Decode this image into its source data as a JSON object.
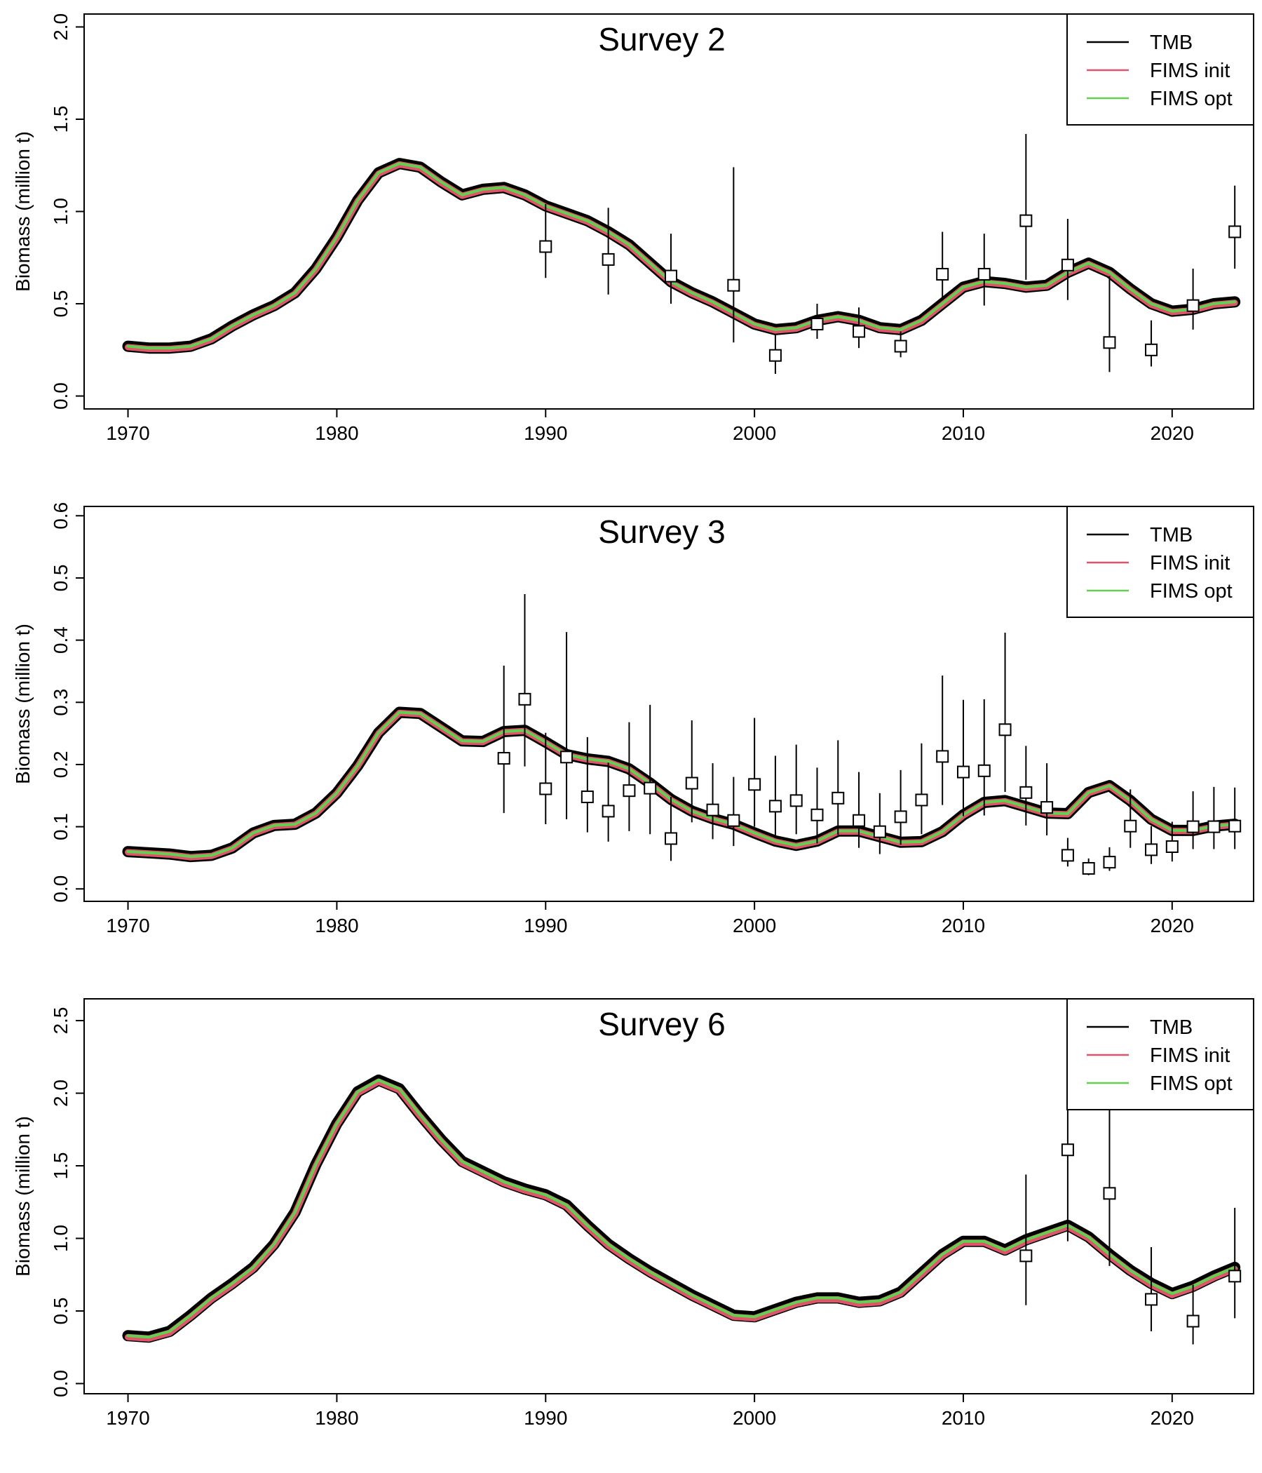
{
  "chart_data": [
    {
      "type": "line",
      "title": "Survey 2",
      "xlabel": "",
      "ylabel": "Biomass (million t)",
      "xlim": [
        1967.9,
        2023.9
      ],
      "ylim": [
        -0.07,
        2.07
      ],
      "yticks": [
        0.0,
        0.5,
        1.0,
        1.5,
        2.0
      ],
      "xticks": [
        1970,
        1980,
        1990,
        2000,
        2010,
        2020
      ],
      "ytick_labels": [
        "0.0",
        "0.5",
        "1.0",
        "1.5",
        "2.0"
      ],
      "xtick_labels": [
        "1970",
        "1980",
        "1990",
        "2000",
        "2010",
        "2020"
      ],
      "grid": false,
      "legend_position": "top-right",
      "x": [
        1970,
        1971,
        1972,
        1973,
        1974,
        1975,
        1976,
        1977,
        1978,
        1979,
        1980,
        1981,
        1982,
        1983,
        1984,
        1985,
        1986,
        1987,
        1988,
        1989,
        1990,
        1991,
        1992,
        1993,
        1994,
        1995,
        1996,
        1997,
        1998,
        1999,
        2000,
        2001,
        2002,
        2003,
        2004,
        2005,
        2006,
        2007,
        2008,
        2009,
        2010,
        2011,
        2012,
        2013,
        2014,
        2015,
        2016,
        2017,
        2018,
        2019,
        2020,
        2021,
        2022,
        2023
      ],
      "series": [
        {
          "name": "TMB",
          "color": "#000000",
          "values": [
            0.27,
            0.26,
            0.26,
            0.27,
            0.31,
            0.38,
            0.44,
            0.49,
            0.56,
            0.69,
            0.86,
            1.06,
            1.21,
            1.26,
            1.24,
            1.16,
            1.09,
            1.12,
            1.13,
            1.09,
            1.03,
            0.99,
            0.95,
            0.89,
            0.82,
            0.72,
            0.62,
            0.56,
            0.51,
            0.45,
            0.39,
            0.36,
            0.37,
            0.41,
            0.43,
            0.41,
            0.37,
            0.36,
            0.41,
            0.5,
            0.59,
            0.62,
            0.61,
            0.59,
            0.6,
            0.67,
            0.72,
            0.67,
            0.58,
            0.5,
            0.46,
            0.47,
            0.5,
            0.51
          ]
        },
        {
          "name": "FIMS init",
          "color": "#DF536B",
          "values": [
            0.265,
            0.255,
            0.255,
            0.265,
            0.305,
            0.375,
            0.435,
            0.485,
            0.555,
            0.685,
            0.855,
            1.055,
            1.205,
            1.255,
            1.235,
            1.155,
            1.085,
            1.115,
            1.125,
            1.085,
            1.025,
            0.985,
            0.945,
            0.885,
            0.815,
            0.715,
            0.615,
            0.555,
            0.505,
            0.445,
            0.385,
            0.355,
            0.365,
            0.405,
            0.425,
            0.405,
            0.365,
            0.355,
            0.405,
            0.495,
            0.585,
            0.615,
            0.605,
            0.585,
            0.595,
            0.665,
            0.715,
            0.665,
            0.575,
            0.495,
            0.455,
            0.465,
            0.495,
            0.505
          ]
        },
        {
          "name": "FIMS opt",
          "color": "#61D04F",
          "values": [
            0.27,
            0.26,
            0.26,
            0.27,
            0.31,
            0.38,
            0.44,
            0.49,
            0.56,
            0.69,
            0.86,
            1.06,
            1.21,
            1.26,
            1.24,
            1.16,
            1.09,
            1.12,
            1.13,
            1.09,
            1.03,
            0.99,
            0.95,
            0.89,
            0.82,
            0.72,
            0.62,
            0.56,
            0.51,
            0.45,
            0.39,
            0.36,
            0.37,
            0.41,
            0.43,
            0.41,
            0.37,
            0.36,
            0.41,
            0.5,
            0.59,
            0.62,
            0.61,
            0.59,
            0.6,
            0.67,
            0.72,
            0.67,
            0.58,
            0.5,
            0.46,
            0.47,
            0.5,
            0.51
          ]
        }
      ],
      "observations": {
        "x": [
          1990,
          1993,
          1996,
          1999,
          2001,
          2003,
          2005,
          2007,
          2009,
          2011,
          2013,
          2015,
          2017,
          2019,
          2021,
          2023
        ],
        "y": [
          0.81,
          0.74,
          0.65,
          0.6,
          0.22,
          0.39,
          0.35,
          0.27,
          0.66,
          0.66,
          0.95,
          0.71,
          0.29,
          0.25,
          0.49,
          0.89
        ],
        "lower": [
          0.64,
          0.55,
          0.5,
          0.29,
          0.12,
          0.31,
          0.26,
          0.21,
          0.52,
          0.49,
          0.63,
          0.52,
          0.13,
          0.16,
          0.36,
          0.69
        ],
        "upper": [
          1.04,
          1.02,
          0.88,
          1.24,
          0.33,
          0.5,
          0.48,
          0.35,
          0.89,
          0.88,
          1.42,
          0.96,
          0.65,
          0.41,
          0.69,
          1.14
        ]
      }
    },
    {
      "type": "line",
      "title": "Survey 3",
      "xlabel": "",
      "ylabel": "Biomass (million t)",
      "xlim": [
        1967.9,
        2023.9
      ],
      "ylim": [
        -0.02,
        0.615
      ],
      "yticks": [
        0.0,
        0.1,
        0.2,
        0.3,
        0.4,
        0.5,
        0.6
      ],
      "xticks": [
        1970,
        1980,
        1990,
        2000,
        2010,
        2020
      ],
      "ytick_labels": [
        "0.0",
        "0.1",
        "0.2",
        "0.3",
        "0.4",
        "0.5",
        "0.6"
      ],
      "xtick_labels": [
        "1970",
        "1980",
        "1990",
        "2000",
        "2010",
        "2020"
      ],
      "grid": false,
      "legend_position": "top-right",
      "x": [
        1970,
        1971,
        1972,
        1973,
        1974,
        1975,
        1976,
        1977,
        1978,
        1979,
        1980,
        1981,
        1982,
        1983,
        1984,
        1985,
        1986,
        1987,
        1988,
        1989,
        1990,
        1991,
        1992,
        1993,
        1994,
        1995,
        1996,
        1997,
        1998,
        1999,
        2000,
        2001,
        2002,
        2003,
        2004,
        2005,
        2006,
        2007,
        2008,
        2009,
        2010,
        2011,
        2012,
        2013,
        2014,
        2015,
        2016,
        2017,
        2018,
        2019,
        2020,
        2021,
        2022,
        2023
      ],
      "series": [
        {
          "name": "TMB",
          "color": "#000000",
          "values": [
            0.06,
            0.058,
            0.056,
            0.052,
            0.054,
            0.066,
            0.09,
            0.102,
            0.104,
            0.122,
            0.154,
            0.198,
            0.251,
            0.284,
            0.282,
            0.26,
            0.238,
            0.237,
            0.253,
            0.255,
            0.236,
            0.216,
            0.209,
            0.205,
            0.193,
            0.17,
            0.144,
            0.125,
            0.113,
            0.104,
            0.09,
            0.077,
            0.07,
            0.077,
            0.093,
            0.093,
            0.084,
            0.075,
            0.076,
            0.092,
            0.119,
            0.139,
            0.142,
            0.132,
            0.122,
            0.121,
            0.155,
            0.166,
            0.142,
            0.112,
            0.094,
            0.094,
            0.101,
            0.104
          ]
        },
        {
          "name": "FIMS init",
          "color": "#DF536B",
          "values": [
            0.059,
            0.057,
            0.055,
            0.051,
            0.053,
            0.065,
            0.089,
            0.101,
            0.103,
            0.121,
            0.153,
            0.197,
            0.25,
            0.283,
            0.281,
            0.259,
            0.237,
            0.236,
            0.252,
            0.254,
            0.235,
            0.215,
            0.208,
            0.204,
            0.192,
            0.169,
            0.143,
            0.124,
            0.112,
            0.103,
            0.089,
            0.076,
            0.069,
            0.076,
            0.092,
            0.092,
            0.083,
            0.074,
            0.075,
            0.091,
            0.118,
            0.138,
            0.141,
            0.131,
            0.121,
            0.12,
            0.154,
            0.165,
            0.141,
            0.111,
            0.093,
            0.093,
            0.1,
            0.103
          ]
        },
        {
          "name": "FIMS opt",
          "color": "#61D04F",
          "values": [
            0.06,
            0.058,
            0.056,
            0.052,
            0.054,
            0.066,
            0.09,
            0.102,
            0.104,
            0.122,
            0.154,
            0.198,
            0.251,
            0.284,
            0.282,
            0.26,
            0.238,
            0.237,
            0.253,
            0.255,
            0.236,
            0.216,
            0.209,
            0.205,
            0.193,
            0.17,
            0.144,
            0.125,
            0.113,
            0.104,
            0.09,
            0.077,
            0.07,
            0.077,
            0.093,
            0.093,
            0.084,
            0.075,
            0.076,
            0.092,
            0.119,
            0.139,
            0.142,
            0.132,
            0.122,
            0.121,
            0.155,
            0.166,
            0.142,
            0.112,
            0.094,
            0.094,
            0.101,
            0.104
          ]
        }
      ],
      "observations": {
        "x": [
          1988,
          1989,
          1990,
          1991,
          1992,
          1993,
          1994,
          1995,
          1996,
          1997,
          1998,
          1999,
          2000,
          2001,
          2002,
          2003,
          2004,
          2005,
          2006,
          2007,
          2008,
          2009,
          2010,
          2011,
          2012,
          2013,
          2014,
          2015,
          2016,
          2017,
          2018,
          2019,
          2020,
          2021,
          2022,
          2023
        ],
        "y": [
          0.21,
          0.305,
          0.161,
          0.212,
          0.148,
          0.125,
          0.158,
          0.162,
          0.081,
          0.17,
          0.127,
          0.11,
          0.168,
          0.133,
          0.142,
          0.119,
          0.146,
          0.11,
          0.092,
          0.116,
          0.143,
          0.213,
          0.188,
          0.19,
          0.256,
          0.155,
          0.131,
          0.054,
          0.033,
          0.043,
          0.101,
          0.063,
          0.068,
          0.1,
          0.1,
          0.101
        ],
        "lower": [
          0.122,
          0.197,
          0.104,
          0.112,
          0.091,
          0.076,
          0.093,
          0.088,
          0.045,
          0.107,
          0.08,
          0.069,
          0.1,
          0.082,
          0.088,
          0.073,
          0.087,
          0.066,
          0.056,
          0.071,
          0.088,
          0.135,
          0.117,
          0.118,
          0.156,
          0.102,
          0.086,
          0.036,
          0.022,
          0.029,
          0.066,
          0.04,
          0.044,
          0.064,
          0.064,
          0.064
        ],
        "upper": [
          0.359,
          0.474,
          0.251,
          0.413,
          0.244,
          0.203,
          0.268,
          0.296,
          0.148,
          0.271,
          0.202,
          0.18,
          0.275,
          0.214,
          0.232,
          0.195,
          0.239,
          0.188,
          0.154,
          0.191,
          0.234,
          0.343,
          0.304,
          0.305,
          0.412,
          0.23,
          0.202,
          0.082,
          0.049,
          0.067,
          0.16,
          0.101,
          0.108,
          0.157,
          0.164,
          0.163
        ]
      }
    },
    {
      "type": "line",
      "title": "Survey 6",
      "xlabel": "",
      "ylabel": "Biomass (million t)",
      "xlim": [
        1967.9,
        2023.9
      ],
      "ylim": [
        -0.07,
        2.65
      ],
      "yticks": [
        0.0,
        0.5,
        1.0,
        1.5,
        2.0,
        2.5
      ],
      "xticks": [
        1970,
        1980,
        1990,
        2000,
        2010,
        2020
      ],
      "ytick_labels": [
        "0.0",
        "0.5",
        "1.0",
        "1.5",
        "2.0",
        "2.5"
      ],
      "xtick_labels": [
        "1970",
        "1980",
        "1990",
        "2000",
        "2010",
        "2020"
      ],
      "grid": false,
      "legend_position": "top-right",
      "x": [
        1970,
        1971,
        1972,
        1973,
        1974,
        1975,
        1976,
        1977,
        1978,
        1979,
        1980,
        1981,
        1982,
        1983,
        1984,
        1985,
        1986,
        1987,
        1988,
        1989,
        1990,
        1991,
        1992,
        1993,
        1994,
        1995,
        1996,
        1997,
        1998,
        1999,
        2000,
        2001,
        2002,
        2003,
        2004,
        2005,
        2006,
        2007,
        2008,
        2009,
        2010,
        2011,
        2012,
        2013,
        2014,
        2015,
        2016,
        2017,
        2018,
        2019,
        2020,
        2021,
        2022,
        2023
      ],
      "series": [
        {
          "name": "TMB",
          "color": "#000000",
          "values": [
            0.33,
            0.32,
            0.36,
            0.47,
            0.59,
            0.69,
            0.8,
            0.96,
            1.18,
            1.51,
            1.79,
            2.01,
            2.09,
            2.03,
            1.85,
            1.68,
            1.53,
            1.46,
            1.39,
            1.34,
            1.3,
            1.23,
            1.09,
            0.96,
            0.86,
            0.77,
            0.69,
            0.61,
            0.54,
            0.47,
            0.46,
            0.51,
            0.56,
            0.59,
            0.59,
            0.56,
            0.57,
            0.63,
            0.76,
            0.89,
            0.98,
            0.98,
            0.92,
            0.99,
            1.04,
            1.09,
            1.01,
            0.89,
            0.78,
            0.69,
            0.62,
            0.67,
            0.74,
            0.8
          ]
        },
        {
          "name": "FIMS init",
          "color": "#DF536B",
          "values": [
            0.32,
            0.31,
            0.35,
            0.46,
            0.58,
            0.68,
            0.79,
            0.95,
            1.17,
            1.5,
            1.78,
            2.0,
            2.08,
            2.02,
            1.84,
            1.67,
            1.52,
            1.45,
            1.38,
            1.33,
            1.29,
            1.22,
            1.08,
            0.95,
            0.85,
            0.76,
            0.68,
            0.6,
            0.53,
            0.46,
            0.45,
            0.5,
            0.55,
            0.58,
            0.58,
            0.55,
            0.56,
            0.62,
            0.75,
            0.88,
            0.97,
            0.97,
            0.91,
            0.98,
            1.03,
            1.08,
            1.0,
            0.88,
            0.77,
            0.68,
            0.61,
            0.66,
            0.73,
            0.79
          ]
        },
        {
          "name": "FIMS opt",
          "color": "#61D04F",
          "values": [
            0.33,
            0.32,
            0.36,
            0.47,
            0.59,
            0.69,
            0.8,
            0.96,
            1.18,
            1.51,
            1.79,
            2.01,
            2.09,
            2.03,
            1.85,
            1.68,
            1.53,
            1.46,
            1.39,
            1.34,
            1.3,
            1.23,
            1.09,
            0.96,
            0.86,
            0.77,
            0.69,
            0.61,
            0.54,
            0.47,
            0.46,
            0.51,
            0.56,
            0.59,
            0.59,
            0.56,
            0.57,
            0.63,
            0.76,
            0.89,
            0.98,
            0.98,
            0.92,
            0.99,
            1.04,
            1.09,
            1.01,
            0.89,
            0.78,
            0.69,
            0.62,
            0.67,
            0.74,
            0.8
          ]
        }
      ],
      "observations": {
        "x": [
          2013,
          2015,
          2017,
          2019,
          2021,
          2023
        ],
        "y": [
          0.88,
          1.61,
          1.31,
          0.58,
          0.43,
          0.74
        ],
        "lower": [
          0.54,
          0.98,
          0.81,
          0.36,
          0.27,
          0.45
        ],
        "upper": [
          1.44,
          2.6,
          2.1,
          0.94,
          0.68,
          1.21
        ]
      }
    }
  ]
}
